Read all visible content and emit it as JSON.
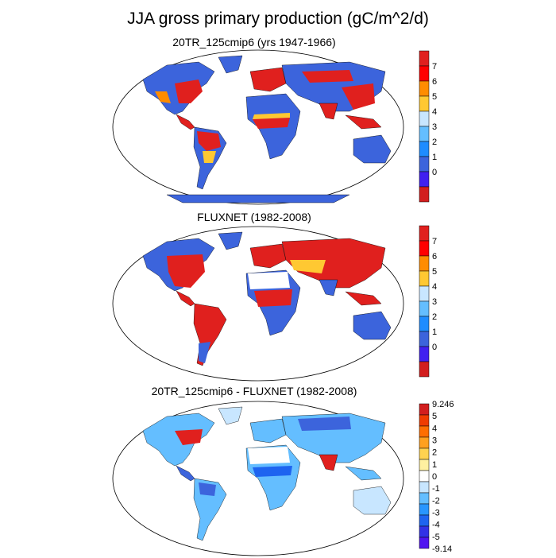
{
  "figure": {
    "title": "JJA gross primary production (gC/m^2/d)",
    "panels": [
      {
        "subtitle": "20TR_125cmip6 (yrs 1947-1966)"
      },
      {
        "subtitle": "FLUXNET (1982-2008)"
      },
      {
        "subtitle": "20TR_125cmip6 - FLUXNET (1982-2008)"
      }
    ]
  },
  "colorbars": {
    "absolute": {
      "labels": [
        "7",
        "6",
        "5",
        "4",
        "3",
        "2",
        "1",
        "0"
      ],
      "colors": [
        "#e0201e",
        "#ff0000",
        "#ff8c00",
        "#ffc832",
        "#c8e6ff",
        "#64beff",
        "#1e8cff",
        "#3c64dc",
        "#4020f0",
        "#d21e1e"
      ]
    },
    "difference": {
      "labels": [
        "9.246",
        "5",
        "4",
        "3",
        "2",
        "1",
        "0",
        "-1",
        "-2",
        "-3",
        "-4",
        "-5",
        "-9.14"
      ],
      "colors": [
        "#d21e1e",
        "#f03c00",
        "#ff6e00",
        "#ffa01e",
        "#ffd250",
        "#fff0a0",
        "#ffffff",
        "#c8e6ff",
        "#64beff",
        "#2896ff",
        "#1e64f0",
        "#3232e6",
        "#5014f0"
      ]
    }
  },
  "colors": {
    "land_low": "#3c64dc",
    "land_high": "#e0201e",
    "diff_pos": "#e0201e",
    "diff_neg": "#3c64dc"
  }
}
